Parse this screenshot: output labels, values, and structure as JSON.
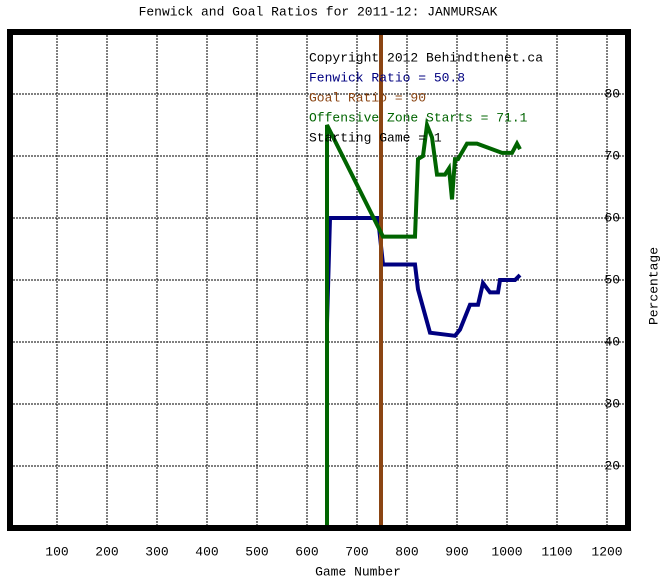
{
  "chart_data": {
    "type": "line",
    "title": "Fenwick and Goal Ratios for 2011-12: JANMURSAK",
    "x_label": "Game Number",
    "y_label": "Percentage",
    "xlim": [
      6,
      1242
    ],
    "ylim": [
      10,
      90
    ],
    "xticks": [
      100,
      200,
      300,
      400,
      500,
      600,
      700,
      800,
      900,
      1000,
      1100,
      1200
    ],
    "yticks": [
      20,
      30,
      40,
      50,
      60,
      70,
      80
    ],
    "grid": true,
    "series": [
      {
        "color": "#000080",
        "x": [
          640,
          640,
          646,
          742,
          752,
          816,
          822,
          846,
          896,
          906,
          926,
          942,
          952,
          966,
          982,
          986,
          1016,
          1026
        ],
        "values": [
          36,
          43,
          60,
          60,
          52.5,
          52.5,
          48.5,
          41.5,
          41,
          42,
          46,
          46,
          49.5,
          48,
          48,
          50,
          50,
          50.8
        ]
      },
      {
        "color": "#8b4513",
        "x": [
          748,
          748
        ],
        "values": [
          90,
          10
        ]
      },
      {
        "color": "#006400",
        "x": [
          640,
          640,
          752,
          816,
          822,
          832,
          840,
          850,
          860,
          876,
          884,
          890,
          896,
          902,
          920,
          940,
          990,
          1010,
          1020,
          1026
        ],
        "values": [
          10,
          75,
          57,
          57,
          69.5,
          70,
          75,
          73,
          67,
          67,
          68,
          63,
          69.5,
          69.5,
          72,
          72,
          70.5,
          70.5,
          72,
          71.1
        ]
      }
    ],
    "annotations": [
      {
        "text": "Copyright 2012 Behindthenet.ca",
        "color": "#000000"
      },
      {
        "text": "Fenwick Ratio = 50.8",
        "color": "#000080"
      },
      {
        "text": "Goal Ratio = 90",
        "color": "#8b4513"
      },
      {
        "text": "Offensive Zone Starts = 71.1",
        "color": "#006400"
      },
      {
        "text": "Starting Game = 1",
        "color": "#000000"
      }
    ]
  }
}
